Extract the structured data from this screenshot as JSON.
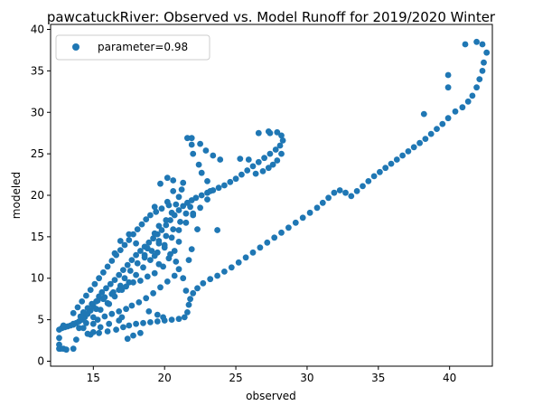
{
  "chart_data": {
    "type": "scatter",
    "title": "pawcatuckRiver: Observed vs. Model Runoff for 2019/2020 Winter",
    "xlabel": "observed",
    "ylabel": "modeled",
    "xlim": [
      12,
      43
    ],
    "ylim": [
      -0.6,
      40.6
    ],
    "xticks": [
      15,
      20,
      25,
      30,
      35,
      40
    ],
    "yticks": [
      0,
      5,
      10,
      15,
      20,
      25,
      30,
      35,
      40
    ],
    "grid": false,
    "legend": "top-left",
    "series": [
      {
        "name": "parameter=0.98",
        "color": "#1f77b4",
        "points": [
          [
            12.6,
            1.5
          ],
          [
            12.6,
            2.0
          ],
          [
            12.6,
            2.8
          ],
          [
            12.7,
            1.5
          ],
          [
            12.9,
            1.5
          ],
          [
            13.1,
            1.4
          ],
          [
            13.6,
            1.5
          ],
          [
            13.8,
            2.6
          ],
          [
            12.6,
            3.8
          ],
          [
            12.8,
            4.0
          ],
          [
            13.0,
            4.1
          ],
          [
            13.2,
            4.2
          ],
          [
            13.4,
            4.3
          ],
          [
            13.6,
            4.4
          ],
          [
            13.8,
            4.6
          ],
          [
            14.0,
            4.8
          ],
          [
            14.2,
            5.0
          ],
          [
            14.4,
            5.3
          ],
          [
            14.6,
            5.7
          ],
          [
            14.8,
            6.1
          ],
          [
            15.0,
            6.6
          ],
          [
            15.2,
            7.2
          ],
          [
            15.4,
            7.8
          ],
          [
            15.6,
            8.3
          ],
          [
            15.9,
            8.8
          ],
          [
            16.2,
            9.3
          ],
          [
            16.5,
            9.8
          ],
          [
            16.8,
            10.4
          ],
          [
            17.1,
            11.0
          ],
          [
            17.4,
            11.6
          ],
          [
            17.7,
            12.2
          ],
          [
            18.0,
            12.8
          ],
          [
            18.3,
            13.3
          ],
          [
            18.6,
            13.8
          ],
          [
            18.9,
            14.3
          ],
          [
            19.2,
            14.8
          ],
          [
            19.5,
            15.3
          ],
          [
            19.8,
            15.8
          ],
          [
            20.1,
            16.4
          ],
          [
            20.4,
            17.0
          ],
          [
            20.7,
            17.6
          ],
          [
            21.0,
            18.2
          ],
          [
            21.3,
            18.7
          ],
          [
            21.6,
            19.1
          ],
          [
            21.9,
            19.4
          ],
          [
            22.2,
            19.7
          ],
          [
            22.6,
            20.0
          ],
          [
            23.0,
            20.3
          ],
          [
            23.4,
            20.6
          ],
          [
            23.8,
            20.9
          ],
          [
            24.2,
            21.2
          ],
          [
            24.6,
            21.6
          ],
          [
            25.0,
            22.0
          ],
          [
            25.4,
            22.5
          ],
          [
            25.8,
            23.0
          ],
          [
            26.2,
            23.5
          ],
          [
            26.6,
            24.0
          ],
          [
            27.0,
            24.5
          ],
          [
            27.4,
            25.0
          ],
          [
            27.8,
            25.5
          ],
          [
            28.1,
            26.0
          ],
          [
            28.3,
            26.6
          ],
          [
            28.2,
            27.2
          ],
          [
            27.9,
            27.6
          ],
          [
            27.3,
            27.7
          ],
          [
            26.6,
            27.5
          ],
          [
            14.0,
            4.0
          ],
          [
            14.5,
            4.6
          ],
          [
            15.0,
            5.3
          ],
          [
            15.5,
            6.2
          ],
          [
            16.0,
            7.0
          ],
          [
            16.5,
            7.8
          ],
          [
            17.0,
            8.6
          ],
          [
            17.5,
            9.5
          ],
          [
            18.0,
            10.4
          ],
          [
            18.5,
            11.3
          ],
          [
            19.0,
            12.2
          ],
          [
            19.5,
            13.1
          ],
          [
            20.0,
            14.0
          ],
          [
            20.5,
            14.9
          ],
          [
            21.0,
            15.8
          ],
          [
            21.5,
            16.7
          ],
          [
            22.0,
            17.6
          ],
          [
            22.5,
            18.5
          ],
          [
            23.0,
            19.5
          ],
          [
            23.2,
            20.5
          ],
          [
            23.0,
            21.7
          ],
          [
            22.6,
            22.7
          ],
          [
            22.4,
            23.7
          ],
          [
            22.0,
            25.0
          ],
          [
            21.9,
            26.1
          ],
          [
            21.6,
            26.9
          ],
          [
            28.2,
            25.0
          ],
          [
            27.9,
            24.2
          ],
          [
            27.6,
            23.7
          ],
          [
            27.3,
            23.3
          ],
          [
            26.9,
            22.9
          ],
          [
            26.4,
            22.6
          ],
          [
            14.8,
            3.2
          ],
          [
            15.4,
            3.4
          ],
          [
            16.0,
            3.6
          ],
          [
            16.6,
            3.8
          ],
          [
            17.1,
            4.1
          ],
          [
            17.5,
            4.3
          ],
          [
            18.0,
            4.5
          ],
          [
            18.5,
            4.6
          ],
          [
            19.0,
            4.7
          ],
          [
            19.5,
            4.8
          ],
          [
            20.0,
            4.9
          ],
          [
            20.5,
            5.0
          ],
          [
            21.0,
            5.1
          ],
          [
            21.4,
            5.3
          ],
          [
            21.6,
            5.9
          ],
          [
            21.7,
            6.8
          ],
          [
            21.8,
            7.5
          ],
          [
            22.0,
            8.2
          ],
          [
            22.3,
            8.8
          ],
          [
            22.7,
            9.4
          ],
          [
            23.2,
            9.9
          ],
          [
            23.7,
            10.3
          ],
          [
            24.2,
            10.8
          ],
          [
            24.7,
            11.3
          ],
          [
            25.2,
            11.9
          ],
          [
            25.7,
            12.5
          ],
          [
            26.2,
            13.1
          ],
          [
            26.7,
            13.7
          ],
          [
            27.2,
            14.3
          ],
          [
            27.7,
            14.9
          ],
          [
            28.2,
            15.5
          ],
          [
            28.7,
            16.1
          ],
          [
            29.2,
            16.7
          ],
          [
            29.7,
            17.3
          ],
          [
            30.2,
            17.9
          ],
          [
            30.7,
            18.5
          ],
          [
            31.1,
            19.1
          ],
          [
            31.5,
            19.7
          ],
          [
            31.9,
            20.3
          ],
          [
            32.3,
            20.6
          ],
          [
            32.7,
            20.3
          ],
          [
            33.1,
            19.9
          ],
          [
            33.5,
            20.5
          ],
          [
            33.9,
            21.1
          ],
          [
            34.3,
            21.7
          ],
          [
            34.7,
            22.3
          ],
          [
            35.1,
            22.8
          ],
          [
            35.5,
            23.3
          ],
          [
            35.9,
            23.8
          ],
          [
            36.3,
            24.3
          ],
          [
            36.7,
            24.8
          ],
          [
            37.1,
            25.3
          ],
          [
            37.5,
            25.8
          ],
          [
            37.9,
            26.3
          ],
          [
            38.3,
            26.8
          ],
          [
            38.7,
            27.4
          ],
          [
            39.1,
            28.0
          ],
          [
            39.5,
            28.6
          ],
          [
            39.9,
            29.3
          ],
          [
            40.4,
            30.1
          ],
          [
            40.9,
            30.6
          ],
          [
            41.3,
            31.3
          ],
          [
            41.6,
            32.0
          ],
          [
            41.9,
            33.0
          ],
          [
            42.1,
            34.0
          ],
          [
            42.3,
            35.0
          ],
          [
            42.4,
            36.0
          ],
          [
            42.6,
            37.2
          ],
          [
            42.3,
            38.2
          ],
          [
            41.9,
            38.5
          ],
          [
            41.1,
            38.2
          ],
          [
            39.9,
            34.5
          ],
          [
            39.9,
            33.0
          ],
          [
            38.2,
            29.8
          ],
          [
            22.3,
            15.9
          ],
          [
            21.9,
            13.5
          ],
          [
            21.7,
            12.2
          ],
          [
            17.4,
            2.7
          ],
          [
            17.8,
            3.1
          ],
          [
            18.3,
            3.4
          ],
          [
            21.3,
            10.0
          ],
          [
            21.5,
            8.5
          ],
          [
            13.6,
            4.5
          ],
          [
            14.6,
            3.3
          ],
          [
            12.9,
            4.3
          ],
          [
            15.2,
            6.3
          ],
          [
            15.7,
            7.5
          ],
          [
            16.1,
            6.9
          ],
          [
            16.4,
            8.3
          ],
          [
            16.9,
            9.1
          ],
          [
            17.2,
            10.0
          ],
          [
            17.6,
            10.9
          ],
          [
            18.1,
            11.8
          ],
          [
            18.6,
            12.5
          ],
          [
            19.1,
            13.3
          ],
          [
            19.6,
            14.2
          ],
          [
            20.1,
            15.1
          ],
          [
            20.6,
            15.9
          ],
          [
            21.1,
            16.8
          ],
          [
            21.5,
            17.8
          ],
          [
            21.8,
            18.6
          ],
          [
            20.3,
            18.8
          ],
          [
            19.8,
            18.4
          ],
          [
            19.4,
            18.0
          ],
          [
            19.0,
            17.6
          ],
          [
            18.7,
            17.1
          ],
          [
            18.4,
            16.5
          ],
          [
            18.1,
            15.9
          ],
          [
            17.8,
            15.3
          ],
          [
            17.5,
            14.6
          ],
          [
            17.2,
            14.0
          ],
          [
            16.9,
            13.4
          ],
          [
            16.6,
            12.8
          ],
          [
            16.3,
            12.1
          ],
          [
            16.0,
            11.4
          ],
          [
            15.7,
            10.7
          ],
          [
            15.4,
            10.0
          ],
          [
            15.1,
            9.3
          ],
          [
            14.8,
            8.6
          ],
          [
            14.5,
            7.9
          ],
          [
            14.2,
            7.2
          ],
          [
            13.9,
            6.5
          ],
          [
            13.6,
            5.8
          ],
          [
            15.0,
            3.5
          ],
          [
            15.0,
            4.5
          ],
          [
            15.3,
            5.0
          ],
          [
            15.8,
            5.4
          ],
          [
            16.3,
            5.7
          ],
          [
            16.8,
            6.0
          ],
          [
            17.3,
            6.3
          ],
          [
            17.7,
            6.7
          ],
          [
            18.2,
            7.1
          ],
          [
            18.7,
            7.6
          ],
          [
            19.2,
            8.2
          ],
          [
            19.7,
            8.9
          ],
          [
            20.2,
            9.6
          ],
          [
            20.7,
            10.3
          ],
          [
            21.0,
            11.1
          ],
          [
            20.8,
            12.0
          ],
          [
            20.4,
            12.9
          ],
          [
            20.0,
            13.7
          ],
          [
            19.6,
            14.5
          ],
          [
            19.3,
            15.4
          ],
          [
            19.6,
            16.3
          ],
          [
            20.1,
            17.0
          ],
          [
            20.5,
            17.9
          ],
          [
            20.8,
            18.9
          ],
          [
            21.0,
            19.8
          ],
          [
            21.2,
            20.7
          ],
          [
            21.3,
            21.5
          ],
          [
            20.6,
            21.8
          ],
          [
            20.2,
            22.1
          ],
          [
            19.7,
            21.4
          ],
          [
            16.5,
            13.0
          ],
          [
            16.9,
            14.5
          ],
          [
            17.5,
            15.3
          ],
          [
            18.0,
            14.2
          ],
          [
            18.8,
            13.6
          ],
          [
            19.3,
            12.7
          ],
          [
            19.6,
            11.7
          ],
          [
            19.3,
            10.6
          ],
          [
            18.8,
            10.2
          ],
          [
            18.3,
            9.7
          ],
          [
            17.8,
            9.5
          ],
          [
            17.3,
            9.0
          ],
          [
            16.8,
            8.6
          ],
          [
            16.3,
            8.1
          ],
          [
            15.8,
            7.7
          ],
          [
            15.3,
            7.3
          ],
          [
            14.9,
            6.9
          ],
          [
            14.6,
            6.4
          ],
          [
            14.3,
            5.9
          ],
          [
            14.1,
            5.4
          ],
          [
            21.9,
            26.9
          ],
          [
            22.5,
            26.2
          ],
          [
            22.9,
            25.4
          ],
          [
            23.4,
            24.8
          ],
          [
            23.9,
            24.3
          ],
          [
            25.3,
            24.4
          ],
          [
            25.9,
            24.3
          ],
          [
            27.4,
            27.5
          ],
          [
            22.0,
            17.8
          ],
          [
            23.7,
            15.8
          ],
          [
            20.2,
            19.2
          ],
          [
            20.6,
            20.5
          ],
          [
            19.3,
            18.6
          ],
          [
            18.6,
            12.8
          ],
          [
            20.3,
            12.4
          ],
          [
            19.9,
            11.4
          ],
          [
            20.7,
            13.3
          ],
          [
            21.0,
            14.4
          ],
          [
            14.3,
            4.0
          ],
          [
            15.5,
            4.1
          ],
          [
            16.1,
            4.5
          ],
          [
            16.8,
            4.9
          ],
          [
            17.0,
            5.3
          ],
          [
            18.9,
            6.0
          ],
          [
            19.5,
            5.6
          ],
          [
            19.9,
            5.3
          ]
        ]
      }
    ]
  }
}
